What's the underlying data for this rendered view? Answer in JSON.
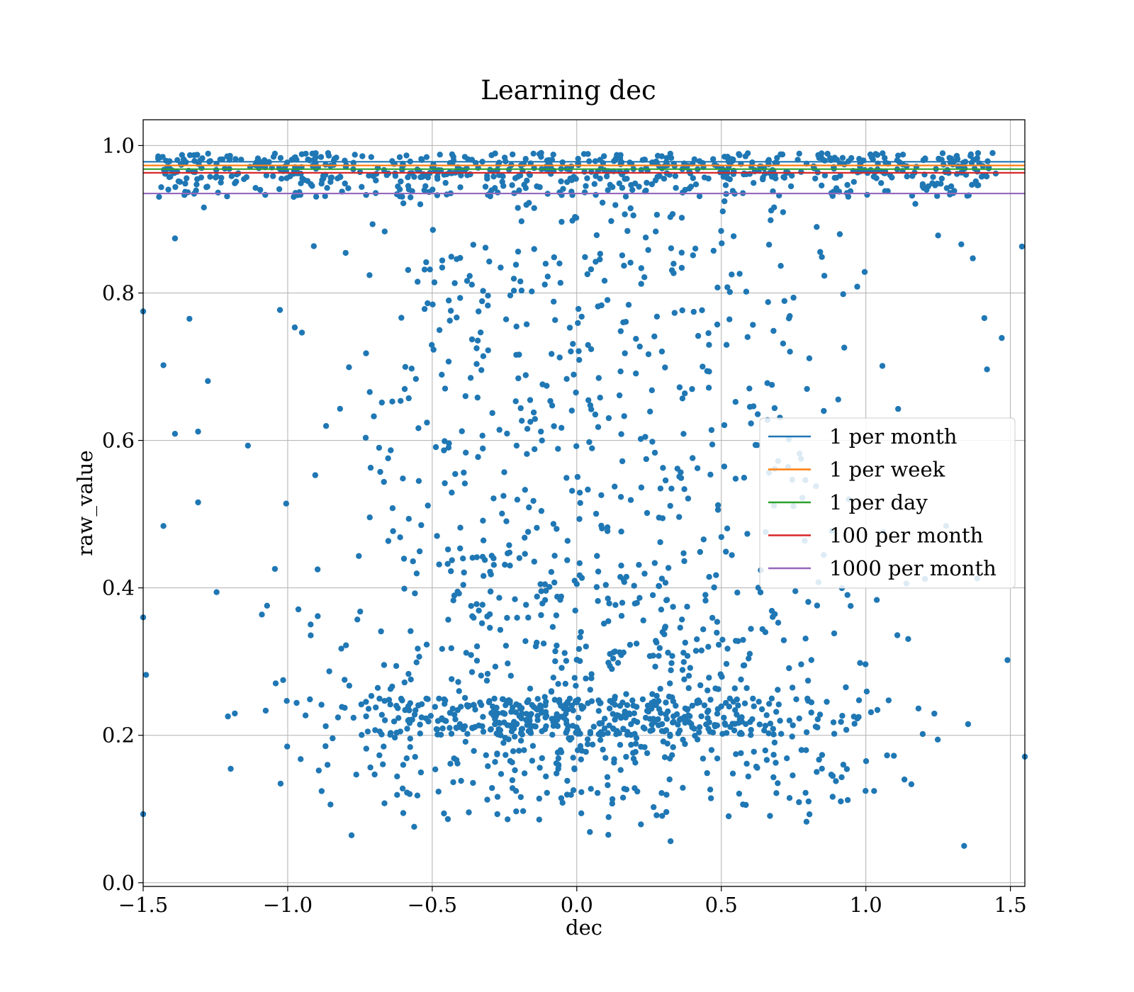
{
  "chart_data": {
    "type": "scatter",
    "title": "Learning dec",
    "xlabel": "dec",
    "ylabel": "raw_value",
    "xlim": [
      -1.5,
      1.55
    ],
    "ylim": [
      -0.005,
      1.035
    ],
    "xticks": [
      -1.5,
      -1.0,
      -0.5,
      0.0,
      0.5,
      1.0,
      1.5
    ],
    "xtick_labels": [
      "−1.5",
      "−1.0",
      "−0.5",
      "0.0",
      "0.5",
      "1.0",
      "1.5"
    ],
    "yticks": [
      0.0,
      0.2,
      0.4,
      0.6,
      0.8,
      1.0
    ],
    "ytick_labels": [
      "0.0",
      "0.2",
      "0.4",
      "0.6",
      "0.8",
      "1.0"
    ],
    "grid": true,
    "legend_position": "center-right",
    "point_color": "#1f77b4",
    "point_count": 2000,
    "points_description_density": [
      {
        "y_range": [
          0.05,
          0.25
        ],
        "density": "very high"
      },
      {
        "y_range": [
          0.25,
          0.45
        ],
        "density": "high"
      },
      {
        "y_range": [
          0.45,
          0.93
        ],
        "density": "medium"
      },
      {
        "y_range": [
          0.93,
          0.99
        ],
        "density": "very high"
      }
    ],
    "x_range_points": [
      -1.5,
      1.55
    ],
    "sample_points": [
      {
        "x": -1.5,
        "y": 0.775
      },
      {
        "x": -1.5,
        "y": 0.36
      },
      {
        "x": -1.49,
        "y": 0.282
      },
      {
        "x": -1.5,
        "y": 0.093
      },
      {
        "x": -1.43,
        "y": 0.484
      },
      {
        "x": -1.43,
        "y": 0.702
      },
      {
        "x": -1.39,
        "y": 0.874
      },
      {
        "x": -1.39,
        "y": 0.609
      },
      {
        "x": -1.34,
        "y": 0.765
      },
      {
        "x": -1.31,
        "y": 0.516
      },
      {
        "x": -1.31,
        "y": 0.612
      },
      {
        "x": -1.29,
        "y": 0.916
      },
      {
        "x": 1.33,
        "y": 0.866
      },
      {
        "x": 1.37,
        "y": 0.847
      },
      {
        "x": 1.41,
        "y": 0.766
      },
      {
        "x": 1.47,
        "y": 0.739
      },
      {
        "x": 1.49,
        "y": 0.302
      },
      {
        "x": 1.54,
        "y": 0.863
      },
      {
        "x": 1.55,
        "y": 0.171
      },
      {
        "x": 1.34,
        "y": 0.05
      }
    ],
    "series": [
      {
        "name": "1 per month",
        "type": "hline",
        "y": 0.978,
        "color": "#1f77b4"
      },
      {
        "name": "1 per week",
        "type": "hline",
        "y": 0.973,
        "color": "#ff7f0e"
      },
      {
        "name": "1 per day",
        "type": "hline",
        "y": 0.968,
        "color": "#2ca02c"
      },
      {
        "name": "100 per month",
        "type": "hline",
        "y": 0.963,
        "color": "#d62728"
      },
      {
        "name": "1000 per month",
        "type": "hline",
        "y": 0.935,
        "color": "#9467bd"
      }
    ]
  }
}
